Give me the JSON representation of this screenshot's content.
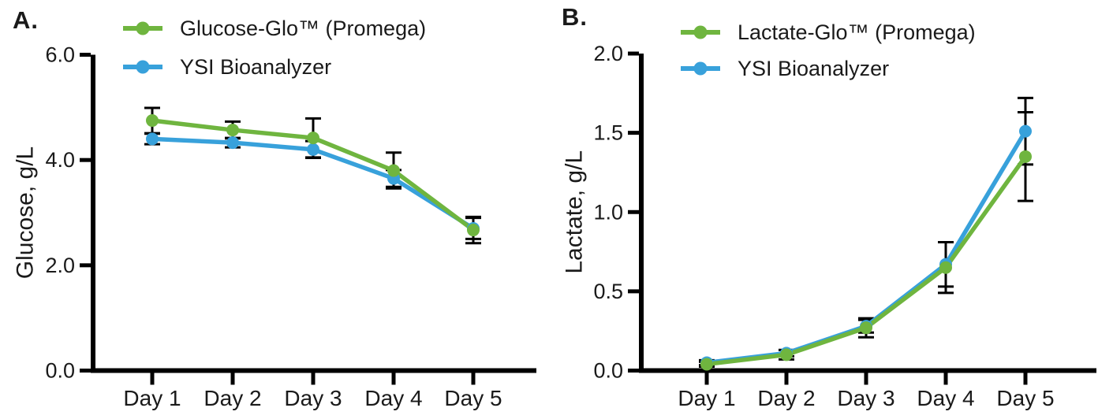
{
  "figure": {
    "background_color": "#ffffff",
    "text_color": "#1a1a1a",
    "axis_color": "#000000",
    "error_bar_color": "#000000"
  },
  "chart_data": [
    {
      "type": "line",
      "panel_label": "A.",
      "ylabel": "Glucose, g/L",
      "xlabel": "",
      "ylim": [
        0.0,
        6.0
      ],
      "yticks": [
        0.0,
        2.0,
        4.0,
        6.0
      ],
      "ytick_labels": [
        "0.0",
        "2.0",
        "4.0",
        "6.0"
      ],
      "categories": [
        "Day 1",
        "Day 2",
        "Day 3",
        "Day 4",
        "Day 5"
      ],
      "grid": false,
      "legend_position": "top-left-inside",
      "error_bars": true,
      "series": [
        {
          "name": "Glucose-Glo™ (Promega)",
          "color": "#6FB53F",
          "marker": "circle",
          "values": [
            4.75,
            4.57,
            4.42,
            3.8,
            2.67
          ],
          "errors": [
            0.24,
            0.16,
            0.37,
            0.34,
            0.25
          ]
        },
        {
          "name": "YSI Bioanalyzer",
          "color": "#38A1DB",
          "marker": "circle",
          "values": [
            4.4,
            4.33,
            4.2,
            3.65,
            2.7
          ],
          "errors": [
            0.1,
            0.09,
            0.16,
            0.16,
            0.2
          ]
        }
      ]
    },
    {
      "type": "line",
      "panel_label": "B.",
      "ylabel": "Lactate, g/L",
      "xlabel": "",
      "ylim": [
        0.0,
        2.0
      ],
      "yticks": [
        0.0,
        0.5,
        1.0,
        1.5,
        2.0
      ],
      "ytick_labels": [
        "0.0",
        "0.5",
        "1.0",
        "1.5",
        "2.0"
      ],
      "categories": [
        "Day 1",
        "Day 2",
        "Day 3",
        "Day 4",
        "Day 5"
      ],
      "grid": false,
      "legend_position": "top-left-inside",
      "error_bars": true,
      "series": [
        {
          "name": "Lactate-Glo™ (Promega)",
          "color": "#6FB53F",
          "marker": "circle",
          "values": [
            0.04,
            0.1,
            0.27,
            0.65,
            1.35
          ],
          "errors": [
            0.015,
            0.03,
            0.06,
            0.16,
            0.28
          ]
        },
        {
          "name": "YSI Bioanalyzer",
          "color": "#38A1DB",
          "marker": "circle",
          "values": [
            0.05,
            0.11,
            0.28,
            0.67,
            1.51
          ],
          "errors": [
            0.015,
            0.02,
            0.04,
            0.14,
            0.21
          ]
        }
      ]
    }
  ]
}
